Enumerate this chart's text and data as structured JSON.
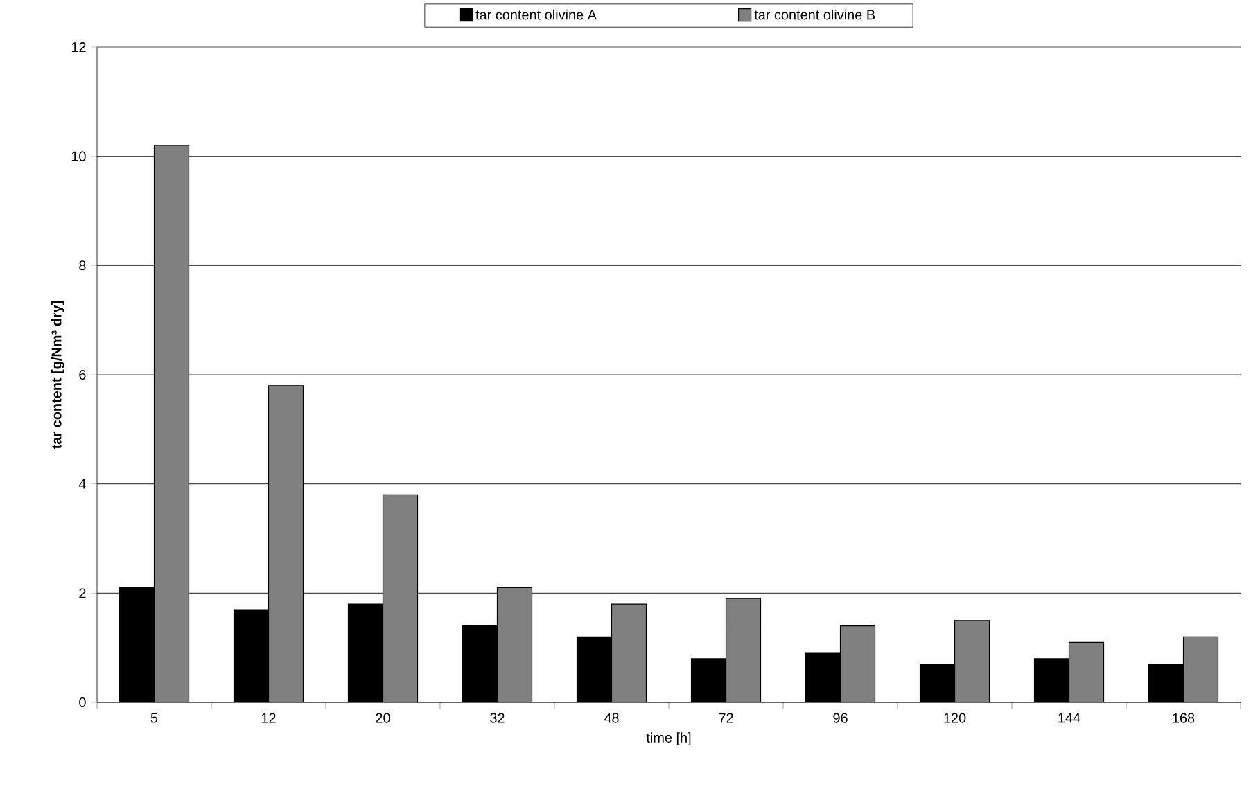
{
  "chart_data": {
    "type": "bar",
    "xlabel": "time [h]",
    "ylabel": "tar content [g/Nm³ dry]",
    "categories": [
      "5",
      "12",
      "20",
      "32",
      "48",
      "72",
      "96",
      "120",
      "144",
      "168"
    ],
    "series": [
      {
        "name": "tar content olivine A",
        "color": "#000000",
        "values": [
          2.1,
          1.7,
          1.8,
          1.4,
          1.2,
          0.8,
          0.9,
          0.7,
          0.8,
          0.7
        ]
      },
      {
        "name": "tar content olivine B",
        "color": "#808080",
        "values": [
          10.2,
          5.8,
          3.8,
          2.1,
          1.8,
          1.9,
          1.4,
          1.5,
          1.1,
          1.2
        ]
      }
    ],
    "ylim": [
      0,
      12
    ],
    "yticks": [
      0,
      2,
      4,
      6,
      8,
      10,
      12
    ],
    "grid": "y",
    "legend": "top"
  }
}
